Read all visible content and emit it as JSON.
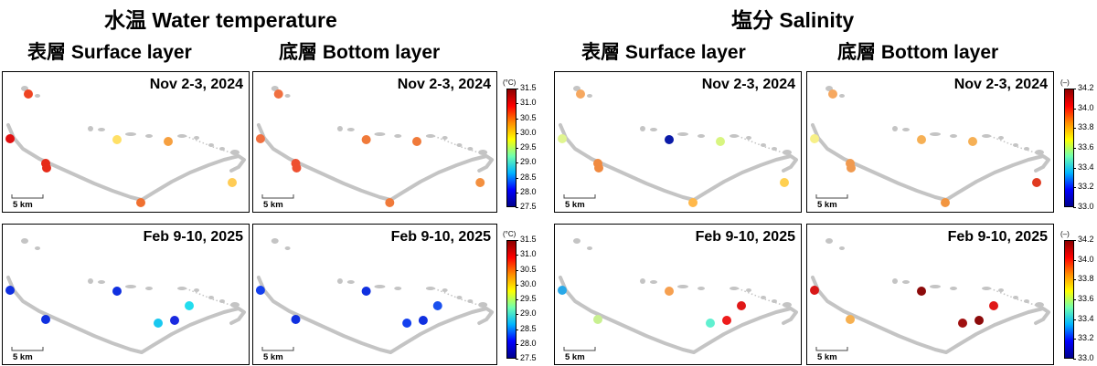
{
  "titles": {
    "temperature": "水温 Water temperature",
    "salinity": "塩分 Salinity",
    "surface": "表層 Surface layer",
    "bottom": "底層 Bottom layer"
  },
  "dates": {
    "nov": "Nov 2-3, 2024",
    "feb": "Feb 9-10, 2025"
  },
  "scale_bar": "5 km",
  "colorbars": {
    "temperature": {
      "unit": "(°C)",
      "ticks": [
        "31.5",
        "31.0",
        "30.5",
        "30.0",
        "29.5",
        "29.0",
        "28.5",
        "28.0",
        "27.5"
      ],
      "range": [
        27.5,
        31.5
      ]
    },
    "salinity": {
      "unit": "(–)",
      "ticks": [
        "34.2",
        "34.0",
        "33.8",
        "33.6",
        "33.4",
        "33.2",
        "33.0"
      ],
      "range": [
        33.0,
        34.2
      ]
    }
  },
  "colormap": [
    "#00008c",
    "#0000ff",
    "#00b4ff",
    "#6fffb0",
    "#ffff00",
    "#ff8c00",
    "#ff0000",
    "#8c0000"
  ],
  "panels": [
    {
      "id": "temp-surface-nov",
      "date_key": "nov",
      "points": [
        {
          "name": "site-1",
          "color": "#ee4422"
        },
        {
          "name": "site-2",
          "color": "#e01010"
        },
        {
          "name": "site-3",
          "color": "#e62a18"
        },
        {
          "name": "site-4",
          "color": "#e62a18"
        },
        {
          "name": "site-5",
          "color": "#ffe066"
        },
        {
          "name": "site-6",
          "color": "#f6a040"
        },
        {
          "name": "site-7",
          "color": "#f07030"
        },
        {
          "name": "site-8",
          "color": "#ffcc55"
        }
      ]
    },
    {
      "id": "temp-bottom-nov",
      "date_key": "nov",
      "points": [
        {
          "name": "site-1",
          "color": "#f07040"
        },
        {
          "name": "site-2",
          "color": "#f07040"
        },
        {
          "name": "site-3",
          "color": "#ee5030"
        },
        {
          "name": "site-4",
          "color": "#ee5030"
        },
        {
          "name": "site-5",
          "color": "#f07a3a"
        },
        {
          "name": "site-6",
          "color": "#f07a3a"
        },
        {
          "name": "site-7",
          "color": "#f07a3a"
        },
        {
          "name": "site-8",
          "color": "#f39040"
        }
      ]
    },
    {
      "id": "temp-surface-feb",
      "date_key": "feb",
      "points": [
        {
          "name": "site-2",
          "color": "#1030e0"
        },
        {
          "name": "site-3",
          "color": "#1030e0"
        },
        {
          "name": "site-5",
          "color": "#1030e0"
        },
        {
          "name": "site-9",
          "color": "#22ddee"
        },
        {
          "name": "site-10",
          "color": "#1a2ae0"
        },
        {
          "name": "site-11",
          "color": "#18c8f0"
        }
      ]
    },
    {
      "id": "temp-bottom-feb",
      "date_key": "feb",
      "points": [
        {
          "name": "site-2",
          "color": "#1440ee"
        },
        {
          "name": "site-3",
          "color": "#1030e0"
        },
        {
          "name": "site-5",
          "color": "#1030e0"
        },
        {
          "name": "site-9",
          "color": "#1a50ee"
        },
        {
          "name": "site-10",
          "color": "#1030e0"
        },
        {
          "name": "site-11",
          "color": "#1440ee"
        }
      ]
    },
    {
      "id": "sal-surface-nov",
      "date_key": "nov",
      "points": [
        {
          "name": "site-1",
          "color": "#f6a860"
        },
        {
          "name": "site-2",
          "color": "#e0f590"
        },
        {
          "name": "site-3",
          "color": "#f08a40"
        },
        {
          "name": "site-4",
          "color": "#f08a40"
        },
        {
          "name": "site-5",
          "color": "#0a1aa8"
        },
        {
          "name": "site-6",
          "color": "#d8f580"
        },
        {
          "name": "site-7",
          "color": "#ffb84a"
        },
        {
          "name": "site-8",
          "color": "#ffd050"
        }
      ]
    },
    {
      "id": "sal-bottom-nov",
      "date_key": "nov",
      "points": [
        {
          "name": "site-1",
          "color": "#f6a860"
        },
        {
          "name": "site-2",
          "color": "#f7f088"
        },
        {
          "name": "site-3",
          "color": "#f09a50"
        },
        {
          "name": "site-4",
          "color": "#f09a50"
        },
        {
          "name": "site-5",
          "color": "#f6b055"
        },
        {
          "name": "site-6",
          "color": "#f6b055"
        },
        {
          "name": "site-7",
          "color": "#f29540"
        },
        {
          "name": "site-8",
          "color": "#e03a20"
        }
      ]
    },
    {
      "id": "sal-surface-feb",
      "date_key": "feb",
      "points": [
        {
          "name": "site-2",
          "color": "#28a8e8"
        },
        {
          "name": "site-3",
          "color": "#c8f090"
        },
        {
          "name": "site-5",
          "color": "#f6a050"
        },
        {
          "name": "site-9",
          "color": "#e01818"
        },
        {
          "name": "site-10",
          "color": "#ee1c1c"
        },
        {
          "name": "site-11",
          "color": "#60f0d0"
        }
      ]
    },
    {
      "id": "sal-bottom-feb",
      "date_key": "feb",
      "points": [
        {
          "name": "site-2",
          "color": "#d81818"
        },
        {
          "name": "site-3",
          "color": "#f6b050"
        },
        {
          "name": "site-5",
          "color": "#8c0a0a"
        },
        {
          "name": "site-9",
          "color": "#e01818"
        },
        {
          "name": "site-10",
          "color": "#8c0a0a"
        },
        {
          "name": "site-11",
          "color": "#a01010"
        }
      ]
    }
  ]
}
